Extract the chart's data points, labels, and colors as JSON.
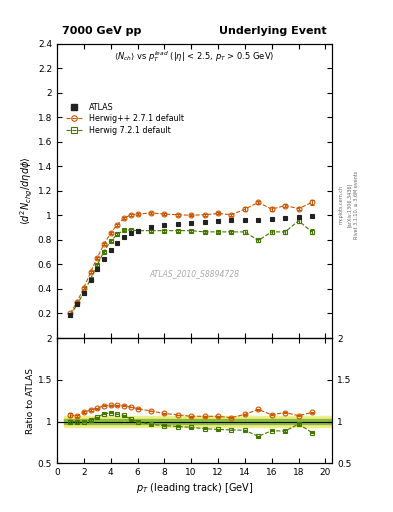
{
  "title_left": "7000 GeV pp",
  "title_right": "Underlying Event",
  "ylabel_main": "$\\langle d^2 N_{chg}/d\\eta d\\phi \\rangle$",
  "ylabel_ratio": "Ratio to ATLAS",
  "xlabel": "$p_T$ (leading track) [GeV]",
  "watermark": "ATLAS_2010_S8894728",
  "right_label1": "Rivet 3.1.10, ≥ 3.6M events",
  "right_label2": "[arXiv:1306.3436]",
  "right_label3": "mcplots.cern.ch",
  "ylim_main": [
    0.0,
    2.4
  ],
  "ylim_ratio": [
    0.5,
    2.0
  ],
  "xlim": [
    0.5,
    20.5
  ],
  "atlas_x": [
    1.0,
    1.5,
    2.0,
    2.5,
    3.0,
    3.5,
    4.0,
    4.5,
    5.0,
    5.5,
    6.0,
    7.0,
    8.0,
    9.0,
    10.0,
    11.0,
    12.0,
    13.0,
    14.0,
    15.0,
    16.0,
    17.0,
    18.0,
    19.0
  ],
  "atlas_y": [
    0.185,
    0.275,
    0.37,
    0.47,
    0.565,
    0.645,
    0.715,
    0.775,
    0.82,
    0.855,
    0.875,
    0.905,
    0.92,
    0.93,
    0.94,
    0.945,
    0.955,
    0.96,
    0.965,
    0.965,
    0.97,
    0.975,
    0.985,
    0.995
  ],
  "atlas_yerr": [
    0.008,
    0.008,
    0.008,
    0.008,
    0.008,
    0.008,
    0.008,
    0.008,
    0.008,
    0.008,
    0.008,
    0.008,
    0.008,
    0.008,
    0.008,
    0.008,
    0.008,
    0.008,
    0.008,
    0.008,
    0.008,
    0.008,
    0.008,
    0.008
  ],
  "hpp_x": [
    1.0,
    1.5,
    2.0,
    2.5,
    3.0,
    3.5,
    4.0,
    4.5,
    5.0,
    5.5,
    6.0,
    7.0,
    8.0,
    9.0,
    10.0,
    11.0,
    12.0,
    13.0,
    14.0,
    15.0,
    16.0,
    17.0,
    18.0,
    19.0
  ],
  "hpp_y": [
    0.2,
    0.295,
    0.41,
    0.535,
    0.655,
    0.765,
    0.855,
    0.925,
    0.975,
    1.005,
    1.01,
    1.02,
    1.01,
    1.005,
    1.0,
    1.005,
    1.015,
    1.005,
    1.05,
    1.105,
    1.05,
    1.08,
    1.055,
    1.105
  ],
  "hpp_yerr": [
    0.008,
    0.008,
    0.008,
    0.008,
    0.008,
    0.008,
    0.008,
    0.008,
    0.008,
    0.008,
    0.008,
    0.008,
    0.008,
    0.008,
    0.008,
    0.008,
    0.008,
    0.008,
    0.015,
    0.015,
    0.015,
    0.015,
    0.015,
    0.02
  ],
  "h721_x": [
    1.0,
    1.5,
    2.0,
    2.5,
    3.0,
    3.5,
    4.0,
    4.5,
    5.0,
    5.5,
    6.0,
    7.0,
    8.0,
    9.0,
    10.0,
    11.0,
    12.0,
    13.0,
    14.0,
    15.0,
    16.0,
    17.0,
    18.0,
    19.0
  ],
  "h721_y": [
    0.185,
    0.275,
    0.37,
    0.48,
    0.595,
    0.705,
    0.79,
    0.845,
    0.88,
    0.88,
    0.875,
    0.875,
    0.875,
    0.875,
    0.875,
    0.865,
    0.865,
    0.865,
    0.865,
    0.795,
    0.865,
    0.865,
    0.955,
    0.865
  ],
  "h721_yerr": [
    0.008,
    0.008,
    0.008,
    0.008,
    0.008,
    0.008,
    0.008,
    0.008,
    0.008,
    0.008,
    0.008,
    0.008,
    0.008,
    0.008,
    0.008,
    0.008,
    0.008,
    0.008,
    0.015,
    0.015,
    0.015,
    0.015,
    0.015,
    0.02
  ],
  "hpp_ratio": [
    1.08,
    1.07,
    1.11,
    1.14,
    1.16,
    1.19,
    1.196,
    1.194,
    1.19,
    1.175,
    1.155,
    1.127,
    1.097,
    1.08,
    1.064,
    1.063,
    1.063,
    1.047,
    1.087,
    1.145,
    1.082,
    1.108,
    1.071,
    1.11
  ],
  "h721_ratio": [
    1.0,
    1.0,
    1.0,
    1.021,
    1.053,
    1.093,
    1.105,
    1.09,
    1.073,
    1.029,
    1.0,
    0.967,
    0.951,
    0.941,
    0.931,
    0.915,
    0.906,
    0.901,
    0.896,
    0.823,
    0.891,
    0.887,
    0.97,
    0.869
  ],
  "atlas_color": "#222222",
  "hpp_color": "#cc5500",
  "h721_color": "#447700",
  "band_yellow": "#eeee88",
  "band_green": "#88bb44"
}
